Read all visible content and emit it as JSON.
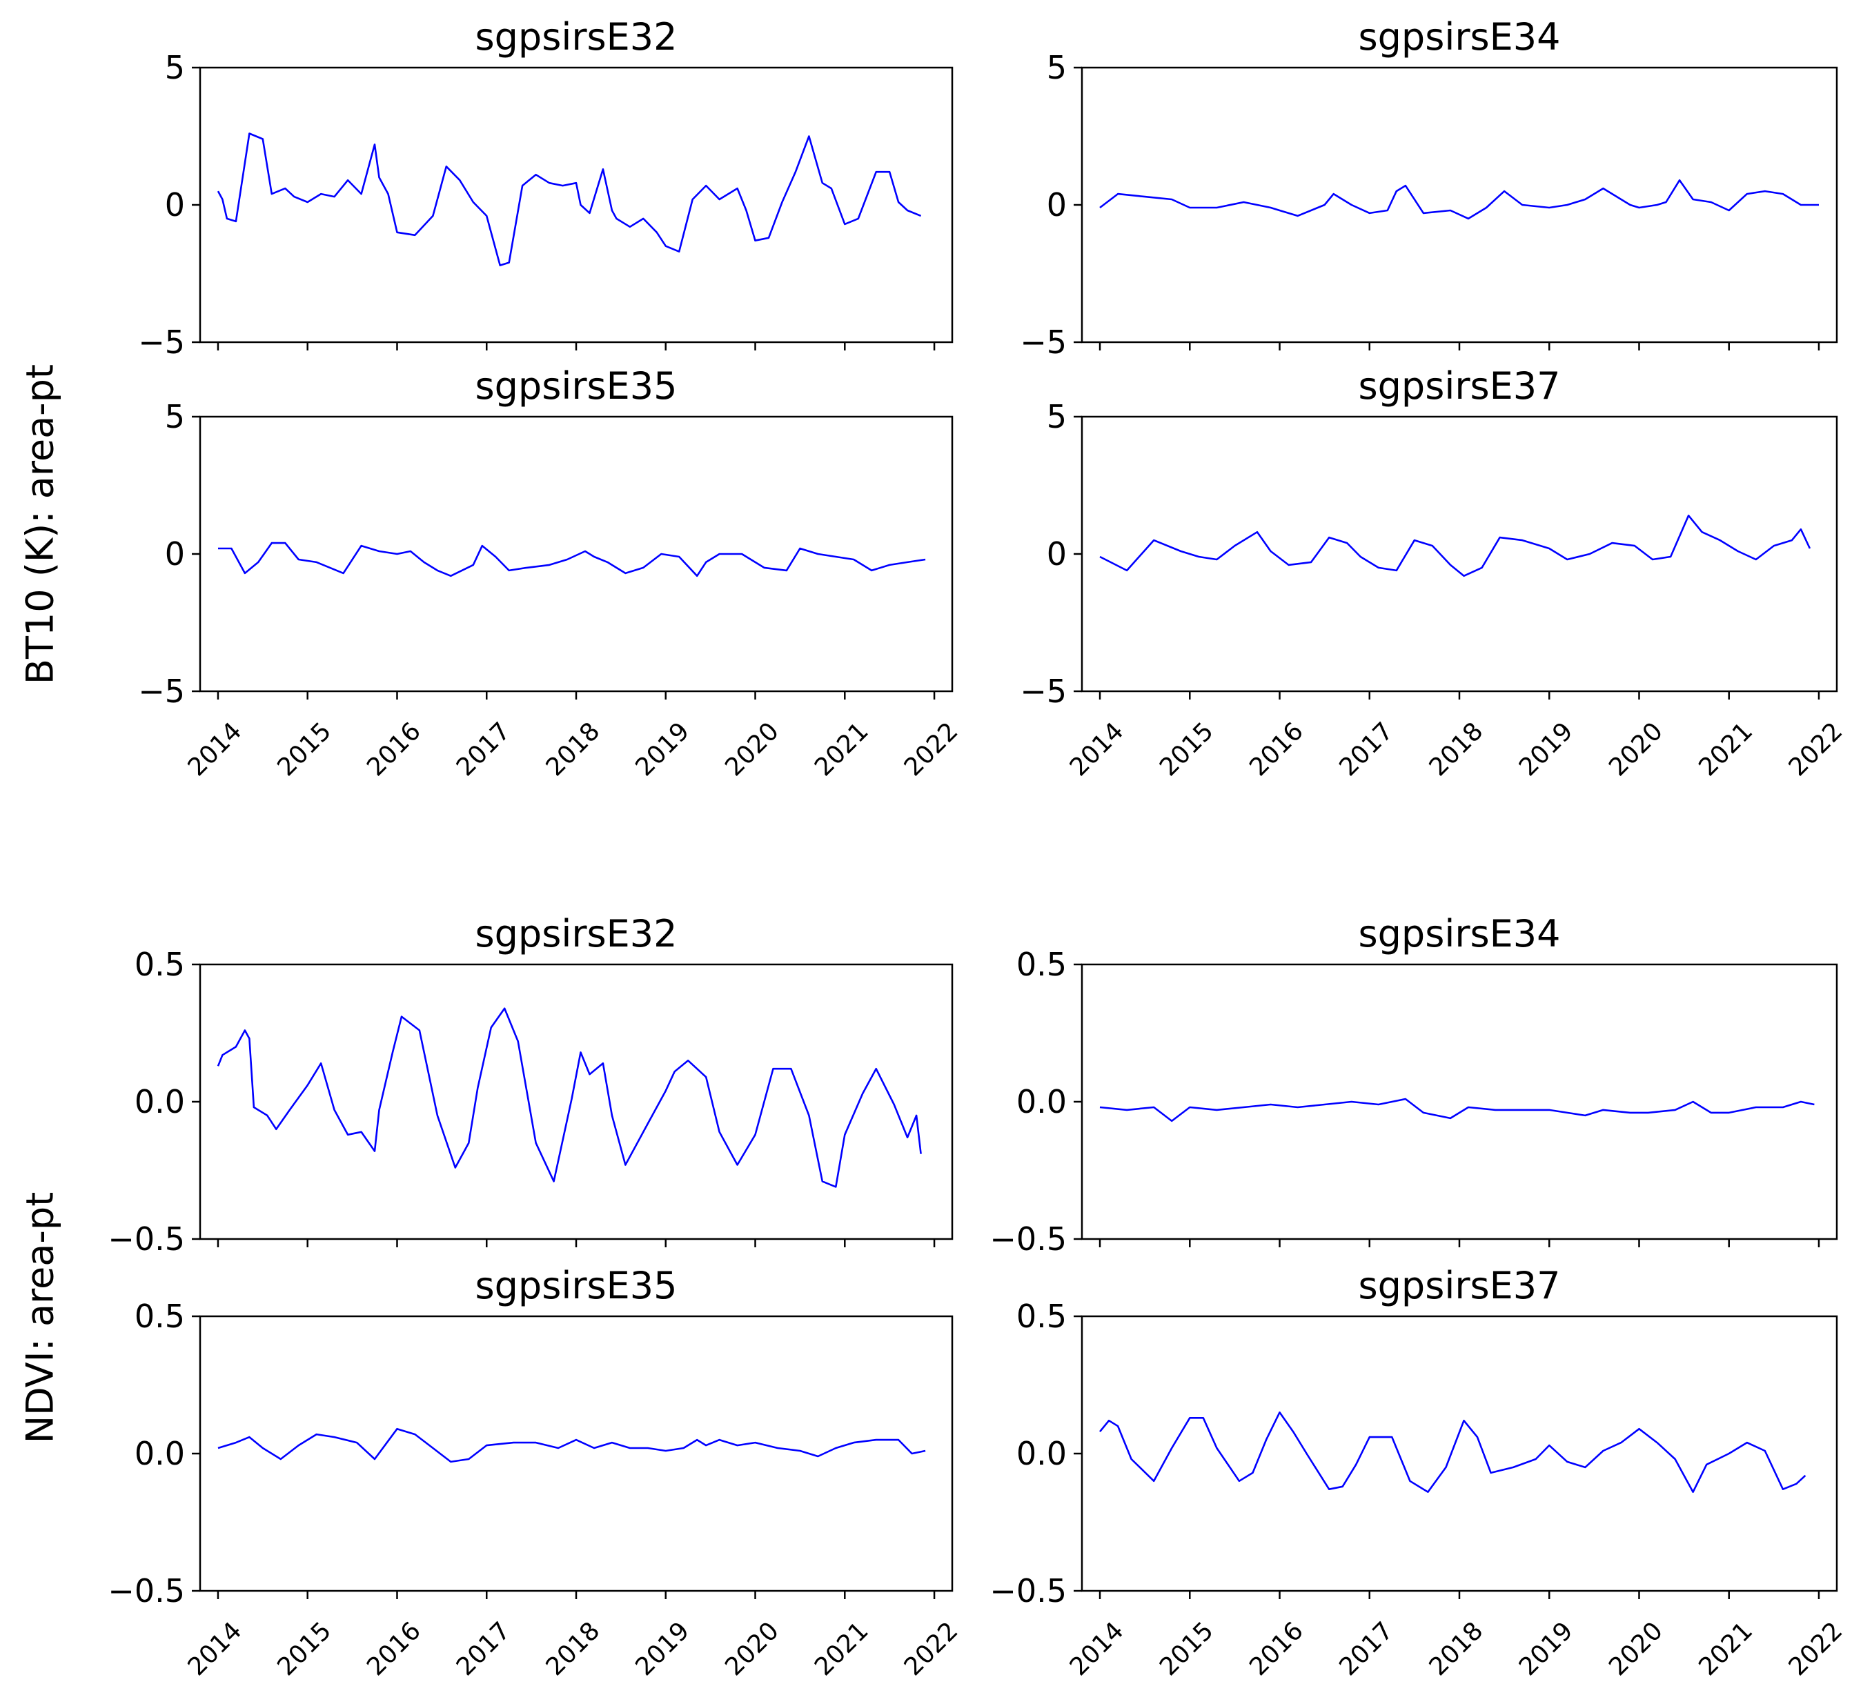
{
  "chart_data": [
    {
      "group": "BT10",
      "ylabel": "BT10 (K): area-pt",
      "ylim": [
        -5,
        5
      ],
      "yticks": [
        5,
        0,
        -5
      ],
      "ytick_labels": [
        "5",
        "0",
        "−5"
      ],
      "xlim": [
        2013.8,
        2022.2
      ],
      "xticks": [
        2014,
        2015,
        2016,
        2017,
        2018,
        2019,
        2020,
        2021,
        2022
      ],
      "xtick_labels": [
        "2014",
        "2015",
        "2016",
        "2017",
        "2018",
        "2019",
        "2020",
        "2021",
        "2022"
      ],
      "series_color": "#0000ff",
      "type": "line",
      "panels": [
        {
          "title": "sgpsirsE32",
          "x": [
            2014.0,
            2014.05,
            2014.1,
            2014.2,
            2014.35,
            2014.5,
            2014.6,
            2014.75,
            2014.85,
            2015.0,
            2015.15,
            2015.3,
            2015.45,
            2015.6,
            2015.75,
            2015.8,
            2015.9,
            2016.0,
            2016.2,
            2016.4,
            2016.55,
            2016.7,
            2016.85,
            2017.0,
            2017.15,
            2017.25,
            2017.4,
            2017.55,
            2017.7,
            2017.85,
            2018.0,
            2018.05,
            2018.15,
            2018.3,
            2018.4,
            2018.45,
            2018.6,
            2018.75,
            2018.9,
            2019.0,
            2019.15,
            2019.3,
            2019.45,
            2019.6,
            2019.8,
            2019.9,
            2020.0,
            2020.15,
            2020.3,
            2020.45,
            2020.6,
            2020.75,
            2020.85,
            2021.0,
            2021.15,
            2021.35,
            2021.5,
            2021.6,
            2021.7,
            2021.85
          ],
          "y": [
            0.5,
            0.2,
            -0.5,
            -0.6,
            2.6,
            2.4,
            0.4,
            0.6,
            0.3,
            0.1,
            0.4,
            0.3,
            0.9,
            0.4,
            2.2,
            1.0,
            0.4,
            -1.0,
            -1.1,
            -0.4,
            1.4,
            0.9,
            0.1,
            -0.4,
            -2.2,
            -2.1,
            0.7,
            1.1,
            0.8,
            0.7,
            0.8,
            0.0,
            -0.3,
            1.3,
            -0.2,
            -0.5,
            -0.8,
            -0.5,
            -1.0,
            -1.5,
            -1.7,
            0.2,
            0.7,
            0.2,
            0.6,
            -0.2,
            -1.3,
            -1.2,
            0.1,
            1.2,
            2.5,
            0.8,
            0.6,
            -0.7,
            -0.5,
            1.2,
            1.2,
            0.1,
            -0.2,
            -0.4
          ]
        },
        {
          "title": "sgpsirsE34",
          "x": [
            2014.0,
            2014.2,
            2014.5,
            2014.8,
            2015.0,
            2015.3,
            2015.6,
            2015.9,
            2016.0,
            2016.2,
            2016.5,
            2016.6,
            2016.8,
            2017.0,
            2017.2,
            2017.3,
            2017.4,
            2017.6,
            2017.9,
            2018.1,
            2018.3,
            2018.5,
            2018.7,
            2019.0,
            2019.2,
            2019.4,
            2019.6,
            2019.9,
            2020.0,
            2020.2,
            2020.3,
            2020.45,
            2020.6,
            2020.8,
            2021.0,
            2021.2,
            2021.4,
            2021.6,
            2021.8,
            2022.0
          ],
          "y": [
            -0.1,
            0.4,
            0.3,
            0.2,
            -0.1,
            -0.1,
            0.1,
            -0.1,
            -0.2,
            -0.4,
            0.0,
            0.4,
            0.0,
            -0.3,
            -0.2,
            0.5,
            0.7,
            -0.3,
            -0.2,
            -0.5,
            -0.1,
            0.5,
            0.0,
            -0.1,
            0.0,
            0.2,
            0.6,
            0.0,
            -0.1,
            0.0,
            0.1,
            0.9,
            0.2,
            0.1,
            -0.2,
            0.4,
            0.5,
            0.4,
            0.0,
            0.0
          ]
        },
        {
          "title": "sgpsirsE35",
          "x": [
            2014.0,
            2014.15,
            2014.3,
            2014.45,
            2014.6,
            2014.75,
            2014.9,
            2015.1,
            2015.4,
            2015.6,
            2015.8,
            2016.0,
            2016.15,
            2016.3,
            2016.45,
            2016.6,
            2016.85,
            2016.95,
            2017.1,
            2017.25,
            2017.45,
            2017.7,
            2017.9,
            2018.1,
            2018.2,
            2018.35,
            2018.55,
            2018.75,
            2018.95,
            2019.15,
            2019.35,
            2019.45,
            2019.6,
            2019.85,
            2020.1,
            2020.35,
            2020.5,
            2020.7,
            2020.9,
            2021.1,
            2021.3,
            2021.5,
            2021.7,
            2021.9
          ],
          "y": [
            0.2,
            0.2,
            -0.7,
            -0.3,
            0.4,
            0.4,
            -0.2,
            -0.3,
            -0.7,
            0.3,
            0.1,
            0.0,
            0.1,
            -0.3,
            -0.6,
            -0.8,
            -0.4,
            0.3,
            -0.1,
            -0.6,
            -0.5,
            -0.4,
            -0.2,
            0.1,
            -0.1,
            -0.3,
            -0.7,
            -0.5,
            0.0,
            -0.1,
            -0.8,
            -0.3,
            0.0,
            0.0,
            -0.5,
            -0.6,
            0.2,
            0.0,
            -0.1,
            -0.2,
            -0.6,
            -0.4,
            -0.3,
            -0.2
          ]
        },
        {
          "title": "sgpsirsE37",
          "x": [
            2014.0,
            2014.3,
            2014.6,
            2014.9,
            2015.1,
            2015.3,
            2015.5,
            2015.75,
            2015.9,
            2016.1,
            2016.35,
            2016.55,
            2016.75,
            2016.9,
            2017.1,
            2017.3,
            2017.5,
            2017.7,
            2017.9,
            2018.05,
            2018.25,
            2018.45,
            2018.7,
            2019.0,
            2019.2,
            2019.45,
            2019.7,
            2019.95,
            2020.15,
            2020.35,
            2020.55,
            2020.7,
            2020.9,
            2021.1,
            2021.3,
            2021.5,
            2021.7,
            2021.8,
            2021.9
          ],
          "y": [
            -0.1,
            -0.6,
            0.5,
            0.1,
            -0.1,
            -0.2,
            0.3,
            0.8,
            0.1,
            -0.4,
            -0.3,
            0.6,
            0.4,
            -0.1,
            -0.5,
            -0.6,
            0.5,
            0.3,
            -0.4,
            -0.8,
            -0.5,
            0.6,
            0.5,
            0.2,
            -0.2,
            0.0,
            0.4,
            0.3,
            -0.2,
            -0.1,
            1.4,
            0.8,
            0.5,
            0.1,
            -0.2,
            0.3,
            0.5,
            0.9,
            0.2
          ]
        }
      ]
    },
    {
      "group": "NDVI",
      "ylabel": "NDVI: area-pt",
      "ylim": [
        -0.5,
        0.5
      ],
      "yticks": [
        0.5,
        0.0,
        -0.5
      ],
      "ytick_labels": [
        "0.5",
        "0.0",
        "−0.5"
      ],
      "xlim": [
        2013.8,
        2022.2
      ],
      "xticks": [
        2014,
        2015,
        2016,
        2017,
        2018,
        2019,
        2020,
        2021,
        2022
      ],
      "xtick_labels": [
        "2014",
        "2015",
        "2016",
        "2017",
        "2018",
        "2019",
        "2020",
        "2021",
        "2022"
      ],
      "series_color": "#0000ff",
      "type": "line",
      "panels": [
        {
          "title": "sgpsirsE32",
          "x": [
            2014.0,
            2014.05,
            2014.2,
            2014.3,
            2014.35,
            2014.4,
            2014.55,
            2014.65,
            2014.8,
            2015.0,
            2015.15,
            2015.3,
            2015.45,
            2015.6,
            2015.75,
            2015.8,
            2015.95,
            2016.05,
            2016.25,
            2016.45,
            2016.65,
            2016.8,
            2016.9,
            2017.05,
            2017.2,
            2017.35,
            2017.55,
            2017.75,
            2017.95,
            2018.05,
            2018.15,
            2018.3,
            2018.4,
            2018.55,
            2018.8,
            2019.0,
            2019.1,
            2019.25,
            2019.45,
            2019.6,
            2019.8,
            2020.0,
            2020.2,
            2020.4,
            2020.6,
            2020.75,
            2020.9,
            2021.0,
            2021.2,
            2021.35,
            2021.55,
            2021.7,
            2021.8,
            2021.85
          ],
          "y": [
            0.13,
            0.17,
            0.2,
            0.26,
            0.23,
            -0.02,
            -0.05,
            -0.1,
            -0.03,
            0.06,
            0.14,
            -0.03,
            -0.12,
            -0.11,
            -0.18,
            -0.03,
            0.18,
            0.31,
            0.26,
            -0.05,
            -0.24,
            -0.15,
            0.05,
            0.27,
            0.34,
            0.22,
            -0.15,
            -0.29,
            0.01,
            0.18,
            0.1,
            0.14,
            -0.05,
            -0.23,
            -0.08,
            0.04,
            0.11,
            0.15,
            0.09,
            -0.11,
            -0.23,
            -0.12,
            0.12,
            0.12,
            -0.05,
            -0.29,
            -0.31,
            -0.12,
            0.03,
            0.12,
            -0.01,
            -0.13,
            -0.05,
            -0.19
          ]
        },
        {
          "title": "sgpsirsE34",
          "x": [
            2014.0,
            2014.3,
            2014.6,
            2014.8,
            2015.0,
            2015.3,
            2015.6,
            2015.9,
            2016.2,
            2016.5,
            2016.8,
            2017.1,
            2017.4,
            2017.6,
            2017.9,
            2018.1,
            2018.4,
            2018.7,
            2019.0,
            2019.2,
            2019.4,
            2019.6,
            2019.9,
            2020.1,
            2020.4,
            2020.6,
            2020.8,
            2021.0,
            2021.3,
            2021.6,
            2021.8,
            2021.95
          ],
          "y": [
            -0.02,
            -0.03,
            -0.02,
            -0.07,
            -0.02,
            -0.03,
            -0.02,
            -0.01,
            -0.02,
            -0.01,
            0.0,
            -0.01,
            0.01,
            -0.04,
            -0.06,
            -0.02,
            -0.03,
            -0.03,
            -0.03,
            -0.04,
            -0.05,
            -0.03,
            -0.04,
            -0.04,
            -0.03,
            0.0,
            -0.04,
            -0.04,
            -0.02,
            -0.02,
            0.0,
            -0.01
          ]
        },
        {
          "title": "sgpsirsE35",
          "x": [
            2014.0,
            2014.2,
            2014.35,
            2014.5,
            2014.7,
            2014.9,
            2015.1,
            2015.3,
            2015.55,
            2015.75,
            2016.0,
            2016.2,
            2016.4,
            2016.6,
            2016.8,
            2017.0,
            2017.3,
            2017.55,
            2017.8,
            2018.0,
            2018.2,
            2018.4,
            2018.6,
            2018.8,
            2019.0,
            2019.2,
            2019.35,
            2019.45,
            2019.6,
            2019.8,
            2020.0,
            2020.25,
            2020.5,
            2020.7,
            2020.9,
            2021.1,
            2021.35,
            2021.6,
            2021.75,
            2021.9
          ],
          "y": [
            0.02,
            0.04,
            0.06,
            0.02,
            -0.02,
            0.03,
            0.07,
            0.06,
            0.04,
            -0.02,
            0.09,
            0.07,
            0.02,
            -0.03,
            -0.02,
            0.03,
            0.04,
            0.04,
            0.02,
            0.05,
            0.02,
            0.04,
            0.02,
            0.02,
            0.01,
            0.02,
            0.05,
            0.03,
            0.05,
            0.03,
            0.04,
            0.02,
            0.01,
            -0.01,
            0.02,
            0.04,
            0.05,
            0.05,
            0.0,
            0.01
          ]
        },
        {
          "title": "sgpsirsE37",
          "x": [
            2014.0,
            2014.1,
            2014.2,
            2014.35,
            2014.6,
            2014.8,
            2015.0,
            2015.15,
            2015.3,
            2015.55,
            2015.7,
            2015.85,
            2016.0,
            2016.15,
            2016.3,
            2016.55,
            2016.7,
            2016.85,
            2017.0,
            2017.25,
            2017.45,
            2017.65,
            2017.85,
            2018.05,
            2018.2,
            2018.35,
            2018.6,
            2018.85,
            2019.0,
            2019.2,
            2019.4,
            2019.6,
            2019.8,
            2020.0,
            2020.2,
            2020.4,
            2020.6,
            2020.75,
            2021.0,
            2021.2,
            2021.4,
            2021.6,
            2021.75,
            2021.85
          ],
          "y": [
            0.08,
            0.12,
            0.1,
            -0.02,
            -0.1,
            0.02,
            0.13,
            0.13,
            0.02,
            -0.1,
            -0.07,
            0.05,
            0.15,
            0.08,
            0.0,
            -0.13,
            -0.12,
            -0.04,
            0.06,
            0.06,
            -0.1,
            -0.14,
            -0.05,
            0.12,
            0.06,
            -0.07,
            -0.05,
            -0.02,
            0.03,
            -0.03,
            -0.05,
            0.01,
            0.04,
            0.09,
            0.04,
            -0.02,
            -0.14,
            -0.04,
            0.0,
            0.04,
            0.01,
            -0.13,
            -0.11,
            -0.08
          ]
        }
      ]
    }
  ]
}
